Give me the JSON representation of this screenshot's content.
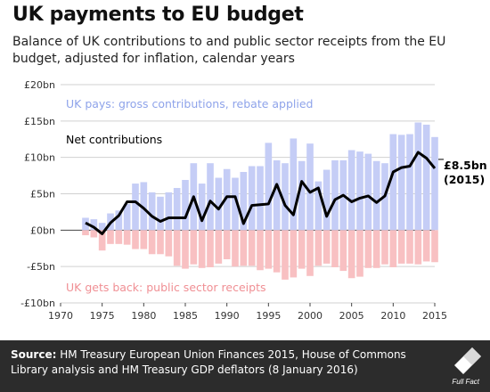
{
  "title": "UK payments to EU budget",
  "subtitle": "Balance of UK contributions to and public sector receipts from the EU budget, adjusted for inflation, calendar years",
  "footer": {
    "source_label": "Source:",
    "source_text": "HM Treasury European Union Finances 2015, House of Commons Library analysis and HM Treasury GDP deflators (8 January 2016)",
    "logo_text": "Full Fact"
  },
  "colors": {
    "gross": "#c5cdf6",
    "receipts": "#f8c0c2",
    "net": "#000000",
    "gross_label": "#8ea3ea",
    "receipts_label": "#f08f94",
    "footer_bg": "#2c2c2c"
  },
  "chart_data": {
    "type": "bar",
    "x": [
      1973,
      1974,
      1975,
      1976,
      1977,
      1978,
      1979,
      1980,
      1981,
      1982,
      1983,
      1984,
      1985,
      1986,
      1987,
      1988,
      1989,
      1990,
      1991,
      1992,
      1993,
      1994,
      1995,
      1996,
      1997,
      1998,
      1999,
      2000,
      2001,
      2002,
      2003,
      2004,
      2005,
      2006,
      2007,
      2008,
      2009,
      2010,
      2011,
      2012,
      2013,
      2014,
      2015
    ],
    "series": [
      {
        "name": "UK pays: gross contributions, rebate applied",
        "kind": "bar",
        "values": [
          1.7,
          1.5,
          1.0,
          2.3,
          2.7,
          3.6,
          6.4,
          6.6,
          5.2,
          4.6,
          5.2,
          5.8,
          6.9,
          9.2,
          6.4,
          9.2,
          7.2,
          8.4,
          7.2,
          8.0,
          8.8,
          8.8,
          12.0,
          9.6,
          9.2,
          12.6,
          9.5,
          11.9,
          6.7,
          8.3,
          9.6,
          9.6,
          11.0,
          10.8,
          10.5,
          9.5,
          9.2,
          13.2,
          13.1,
          13.2,
          14.8,
          14.5,
          12.8
        ]
      },
      {
        "name": "UK gets back: public sector receipts",
        "kind": "bar",
        "values": [
          -0.7,
          -1.0,
          -2.8,
          -1.9,
          -1.9,
          -2.0,
          -2.6,
          -2.6,
          -3.3,
          -3.3,
          -3.6,
          -4.9,
          -5.3,
          -4.7,
          -5.2,
          -5.1,
          -4.6,
          -4.0,
          -5.0,
          -4.9,
          -4.9,
          -5.5,
          -5.3,
          -5.8,
          -6.8,
          -6.5,
          -5.3,
          -6.3,
          -4.9,
          -4.6,
          -5.1,
          -5.6,
          -6.6,
          -6.4,
          -5.2,
          -5.2,
          -4.7,
          -5.1,
          -4.6,
          -4.6,
          -4.7,
          -4.3,
          -4.4
        ]
      },
      {
        "name": "Net contributions",
        "kind": "line",
        "values": [
          1.0,
          0.4,
          -0.5,
          1.0,
          2.0,
          3.9,
          3.9,
          3.0,
          1.9,
          1.2,
          1.7,
          1.7,
          1.7,
          4.6,
          1.3,
          4.0,
          2.9,
          4.6,
          4.6,
          0.9,
          3.4,
          3.5,
          3.6,
          6.3,
          3.4,
          2.1,
          6.7,
          5.2,
          5.8,
          1.9,
          4.2,
          4.8,
          3.9,
          4.4,
          4.7,
          3.8,
          4.7,
          8.0,
          8.6,
          8.8,
          10.7,
          9.9,
          8.5
        ]
      }
    ],
    "xlabel": "",
    "ylabel": "",
    "xlim": [
      1970,
      2015
    ],
    "ylim": [
      -10,
      20
    ],
    "xticks": [
      1970,
      1975,
      1980,
      1985,
      1990,
      1995,
      2000,
      2005,
      2010,
      2015
    ],
    "yticks": [
      -10,
      -5,
      0,
      5,
      10,
      15,
      20
    ],
    "ytick_labels": [
      "-£10bn",
      "-£5bn",
      "£0bn",
      "£5bn",
      "£10bn",
      "£15bn",
      "£20bn"
    ],
    "grid": true,
    "legend": "inline labels",
    "annotations": {
      "gross_label": "UK pays: gross contributions,  rebate applied",
      "receipts_label": "UK gets back: public sector receipts",
      "net_label": "Net contributions",
      "end_value": "£8.5bn",
      "end_year": "(2015)"
    }
  }
}
